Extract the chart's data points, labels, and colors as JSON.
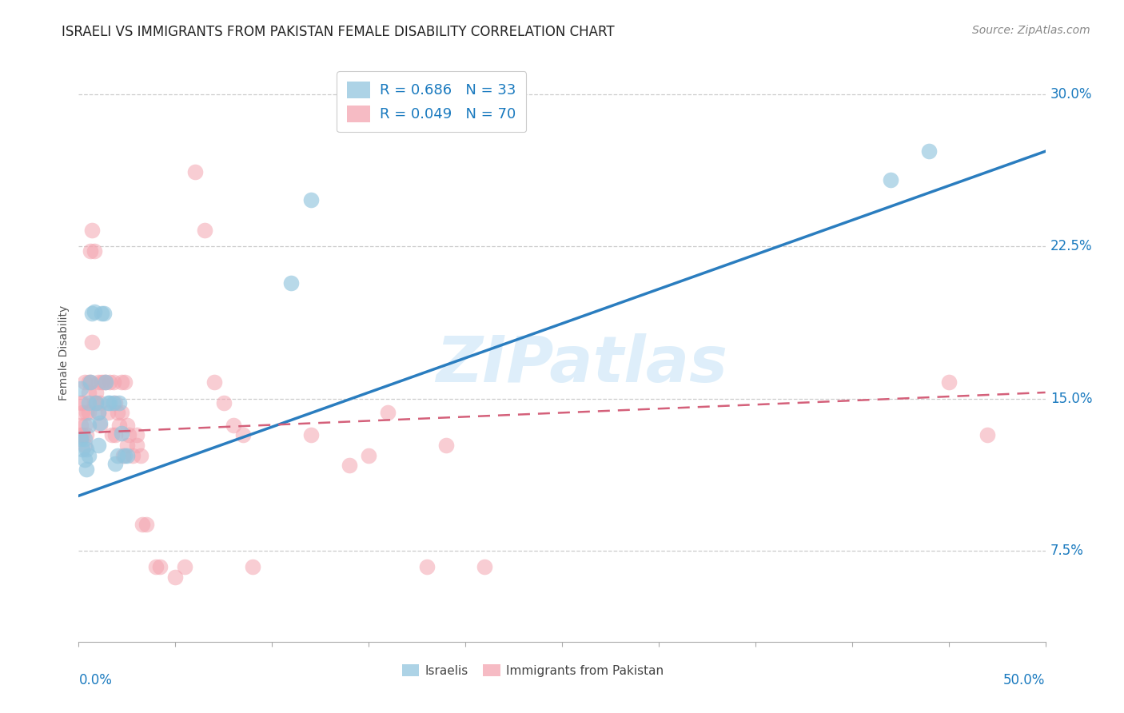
{
  "title": "ISRAELI VS IMMIGRANTS FROM PAKISTAN FEMALE DISABILITY CORRELATION CHART",
  "source": "Source: ZipAtlas.com",
  "ylabel": "Female Disability",
  "xmin": 0.0,
  "xmax": 0.5,
  "ymin": 0.03,
  "ymax": 0.315,
  "title_fontsize": 12,
  "source_fontsize": 10,
  "axis_label_fontsize": 10,
  "legend_R_color": "#1a7abf",
  "legend_fontsize": 13,
  "blue_color": "#92c5de",
  "pink_color": "#f4a4b0",
  "blue_line_color": "#2a7dbf",
  "pink_line_color": "#d4607a",
  "grid_color": "#cccccc",
  "background_color": "#ffffff",
  "watermark_text": "ZIPatlas",
  "legend_blue_label": "R = 0.686   N = 33",
  "legend_pink_label": "R = 0.049   N = 70",
  "israelis_label": "Israelis",
  "pakistan_label": "Immigrants from Pakistan",
  "blue_scatter_x": [
    0.001,
    0.001,
    0.002,
    0.003,
    0.003,
    0.004,
    0.004,
    0.005,
    0.005,
    0.005,
    0.006,
    0.007,
    0.008,
    0.009,
    0.01,
    0.01,
    0.011,
    0.012,
    0.013,
    0.014,
    0.015,
    0.016,
    0.018,
    0.019,
    0.02,
    0.021,
    0.022,
    0.024,
    0.025,
    0.11,
    0.12,
    0.42,
    0.44
  ],
  "blue_scatter_y": [
    0.155,
    0.13,
    0.125,
    0.13,
    0.12,
    0.125,
    0.115,
    0.148,
    0.137,
    0.122,
    0.158,
    0.192,
    0.193,
    0.148,
    0.127,
    0.143,
    0.138,
    0.192,
    0.192,
    0.158,
    0.148,
    0.148,
    0.148,
    0.118,
    0.122,
    0.148,
    0.133,
    0.122,
    0.122,
    0.207,
    0.248,
    0.258,
    0.272
  ],
  "pink_scatter_x": [
    0.001,
    0.001,
    0.001,
    0.002,
    0.002,
    0.002,
    0.003,
    0.003,
    0.003,
    0.004,
    0.004,
    0.005,
    0.005,
    0.005,
    0.006,
    0.006,
    0.007,
    0.007,
    0.008,
    0.008,
    0.009,
    0.009,
    0.01,
    0.01,
    0.011,
    0.011,
    0.012,
    0.013,
    0.014,
    0.015,
    0.016,
    0.017,
    0.018,
    0.019,
    0.019,
    0.02,
    0.021,
    0.022,
    0.022,
    0.023,
    0.024,
    0.025,
    0.025,
    0.026,
    0.028,
    0.03,
    0.03,
    0.032,
    0.033,
    0.035,
    0.04,
    0.042,
    0.05,
    0.055,
    0.06,
    0.065,
    0.07,
    0.075,
    0.08,
    0.085,
    0.09,
    0.12,
    0.14,
    0.15,
    0.16,
    0.18,
    0.19,
    0.21,
    0.45,
    0.47
  ],
  "pink_scatter_y": [
    0.148,
    0.137,
    0.132,
    0.143,
    0.132,
    0.148,
    0.127,
    0.137,
    0.158,
    0.143,
    0.132,
    0.158,
    0.153,
    0.143,
    0.223,
    0.158,
    0.233,
    0.178,
    0.223,
    0.148,
    0.148,
    0.153,
    0.143,
    0.158,
    0.137,
    0.148,
    0.158,
    0.158,
    0.158,
    0.143,
    0.158,
    0.132,
    0.158,
    0.148,
    0.132,
    0.143,
    0.137,
    0.143,
    0.158,
    0.122,
    0.158,
    0.127,
    0.137,
    0.132,
    0.122,
    0.132,
    0.127,
    0.122,
    0.088,
    0.088,
    0.067,
    0.067,
    0.062,
    0.067,
    0.262,
    0.233,
    0.158,
    0.148,
    0.137,
    0.132,
    0.067,
    0.132,
    0.117,
    0.122,
    0.143,
    0.067,
    0.127,
    0.067,
    0.158,
    0.132
  ],
  "blue_line_y_start": 0.102,
  "blue_line_y_end": 0.272,
  "pink_line_y_start": 0.133,
  "pink_line_y_end": 0.153,
  "ytick_vals": [
    0.075,
    0.15,
    0.225,
    0.3
  ],
  "ytick_labels": [
    "7.5%",
    "15.0%",
    "22.5%",
    "30.0%"
  ]
}
